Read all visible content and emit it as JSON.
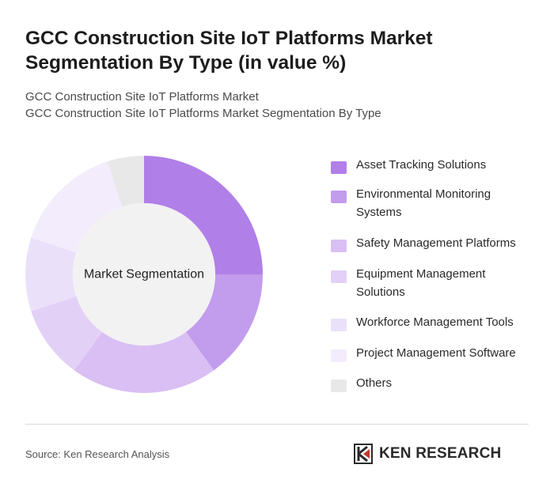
{
  "header": {
    "title": "GCC Construction Site IoT Platforms Market Segmentation By Type (in value %)",
    "subtitle_line1": "GCC Construction Site IoT Platforms Market",
    "subtitle_line2": "GCC Construction Site IoT Platforms Market Segmentation By Type"
  },
  "chart_data": {
    "type": "pie",
    "variant": "donut",
    "center_label": "Market Segmentation",
    "legend_position": "right",
    "categories": [
      "Asset Tracking Solutions",
      "Environmental Monitoring Systems",
      "Safety Management Platforms",
      "Equipment Management Solutions",
      "Workforce Management Tools",
      "Project Management Software",
      "Others"
    ],
    "values": [
      25,
      15,
      20,
      10,
      10,
      15,
      5
    ],
    "colors": [
      "#b17fe8",
      "#c29ced",
      "#d9bff4",
      "#e3d0f7",
      "#ebe0fa",
      "#f3ecfc",
      "#e8e8e8"
    ]
  },
  "footer": {
    "source": "Source: Ken Research Analysis",
    "brand": "KEN RESEARCH",
    "brand_icon": "ken-research-logo-icon"
  }
}
